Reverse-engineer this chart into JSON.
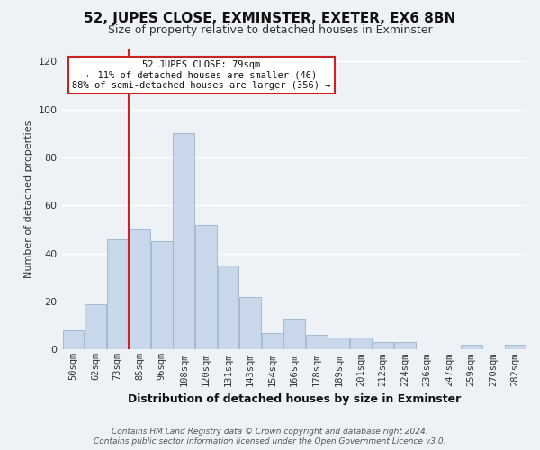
{
  "title": "52, JUPES CLOSE, EXMINSTER, EXETER, EX6 8BN",
  "subtitle": "Size of property relative to detached houses in Exminster",
  "xlabel": "Distribution of detached houses by size in Exminster",
  "ylabel": "Number of detached properties",
  "bar_color": "#c8d8ea",
  "bar_edge_color": "#9ab4cc",
  "categories": [
    "50sqm",
    "62sqm",
    "73sqm",
    "85sqm",
    "96sqm",
    "108sqm",
    "120sqm",
    "131sqm",
    "143sqm",
    "154sqm",
    "166sqm",
    "178sqm",
    "189sqm",
    "201sqm",
    "212sqm",
    "224sqm",
    "236sqm",
    "247sqm",
    "259sqm",
    "270sqm",
    "282sqm"
  ],
  "values": [
    8,
    19,
    46,
    50,
    45,
    90,
    52,
    35,
    22,
    7,
    13,
    6,
    5,
    5,
    3,
    3,
    0,
    0,
    2,
    0,
    2
  ],
  "ylim": [
    0,
    125
  ],
  "yticks": [
    0,
    20,
    40,
    60,
    80,
    100,
    120
  ],
  "property_line_label": "52 JUPES CLOSE: 79sqm",
  "annotation_line1": "← 11% of detached houses are smaller (46)",
  "annotation_line2": "88% of semi-detached houses are larger (356) →",
  "footer_line1": "Contains HM Land Registry data © Crown copyright and database right 2024.",
  "footer_line2": "Contains public sector information licensed under the Open Government Licence v3.0.",
  "background_color": "#eef2f7",
  "grid_color": "#ffffff",
  "annotation_box_facecolor": "#ffffff",
  "annotation_box_edgecolor": "#cc2222",
  "property_line_color": "#cc2222",
  "title_fontsize": 11,
  "subtitle_fontsize": 9,
  "ylabel_fontsize": 8,
  "xlabel_fontsize": 9,
  "tick_fontsize": 7.5,
  "footer_fontsize": 6.5
}
